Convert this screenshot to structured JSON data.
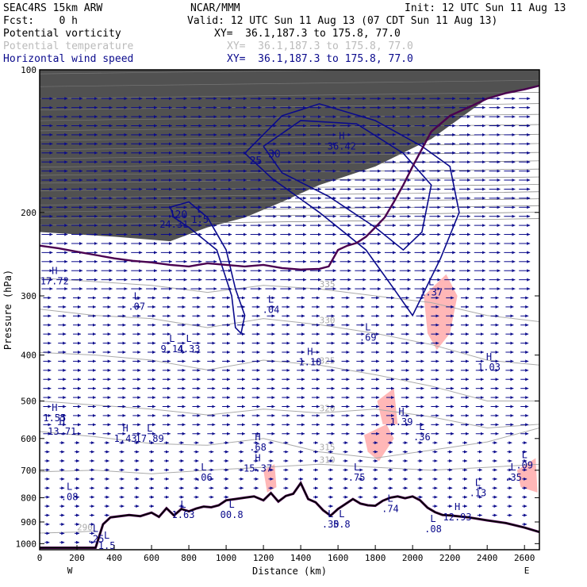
{
  "header": {
    "model": "SEAC4RS 15km ARW",
    "org": "NCAR/MMM",
    "init": "Init: 12 UTC Sun 11 Aug 13",
    "fcst": "Fcst:    0 h",
    "valid": "Valid: 12 UTC Sun 11 Aug 13 (07 CDT Sun 11 Aug 13)",
    "fields": [
      {
        "name": "Potential vorticity",
        "xy": "XY=  36.1,187.3 to 175.8, 77.0",
        "color": "#000000"
      },
      {
        "name": "Potential temperature",
        "xy": "XY=  36.1,187.3 to 175.8, 77.0",
        "color": "#bbbbbb"
      },
      {
        "name": "Horizontal wind speed",
        "xy": "XY=  36.1,187.3 to 175.8, 77.0",
        "color": "#0a0a8c"
      }
    ]
  },
  "colors": {
    "pv_shade": "#333333",
    "theta": "#aaaaaa",
    "wind": "#0a0a8c",
    "pink": "#ffb7b7",
    "terrain": "#000000",
    "pv_contour": "#4a0050"
  },
  "chart_data": {
    "type": "cross-section",
    "xlabel": "Distance (km)",
    "ylabel": "Pressure (hPa)",
    "xlim": [
      0,
      2680
    ],
    "ylim": [
      1030,
      100
    ],
    "y_scale": "log",
    "x_ticks": [
      0,
      200,
      400,
      600,
      800,
      1000,
      1200,
      1400,
      1600,
      1800,
      2000,
      2200,
      2400,
      2600
    ],
    "x_tick_labels": [
      "0",
      "200",
      "400",
      "600",
      "800",
      "1000",
      "1200",
      "1400",
      "1600",
      "1800",
      "2000",
      "2200",
      "2400",
      "2600"
    ],
    "y_ticks": [
      100,
      200,
      300,
      400,
      500,
      600,
      700,
      800,
      900,
      1000
    ],
    "y_tick_labels": [
      "100",
      "200",
      "300",
      "400",
      "500",
      "600",
      "700",
      "800",
      "900",
      "1000"
    ],
    "x_end_labels": {
      "left": "W",
      "right": "E"
    },
    "terrain": [
      [
        0,
        1020
      ],
      [
        300,
        1020
      ],
      [
        340,
        910
      ],
      [
        380,
        880
      ],
      [
        480,
        870
      ],
      [
        540,
        875
      ],
      [
        600,
        860
      ],
      [
        640,
        878
      ],
      [
        680,
        842
      ],
      [
        720,
        872
      ],
      [
        760,
        845
      ],
      [
        800,
        855
      ],
      [
        840,
        843
      ],
      [
        880,
        835
      ],
      [
        920,
        838
      ],
      [
        960,
        830
      ],
      [
        1000,
        810
      ],
      [
        1050,
        805
      ],
      [
        1100,
        800
      ],
      [
        1150,
        795
      ],
      [
        1200,
        810
      ],
      [
        1240,
        782
      ],
      [
        1280,
        815
      ],
      [
        1320,
        793
      ],
      [
        1360,
        785
      ],
      [
        1400,
        745
      ],
      [
        1440,
        805
      ],
      [
        1480,
        818
      ],
      [
        1520,
        850
      ],
      [
        1560,
        873
      ],
      [
        1600,
        845
      ],
      [
        1640,
        825
      ],
      [
        1680,
        805
      ],
      [
        1720,
        823
      ],
      [
        1760,
        830
      ],
      [
        1800,
        832
      ],
      [
        1840,
        812
      ],
      [
        1880,
        800
      ],
      [
        1920,
        795
      ],
      [
        1960,
        802
      ],
      [
        2000,
        795
      ],
      [
        2040,
        810
      ],
      [
        2080,
        840
      ],
      [
        2120,
        858
      ],
      [
        2160,
        870
      ],
      [
        2200,
        872
      ],
      [
        2300,
        880
      ],
      [
        2400,
        893
      ],
      [
        2500,
        905
      ],
      [
        2600,
        925
      ],
      [
        2680,
        945
      ]
    ],
    "tropopause": [
      [
        0,
        235
      ],
      [
        100,
        238
      ],
      [
        200,
        242
      ],
      [
        300,
        246
      ],
      [
        400,
        250
      ],
      [
        500,
        253
      ],
      [
        600,
        255
      ],
      [
        700,
        258
      ],
      [
        800,
        260
      ],
      [
        900,
        256
      ],
      [
        1000,
        258
      ],
      [
        1100,
        260
      ],
      [
        1200,
        258
      ],
      [
        1300,
        262
      ],
      [
        1400,
        264
      ],
      [
        1500,
        263
      ],
      [
        1550,
        260
      ],
      [
        1600,
        240
      ],
      [
        1650,
        235
      ],
      [
        1700,
        232
      ],
      [
        1750,
        225
      ],
      [
        1800,
        215
      ],
      [
        1850,
        205
      ],
      [
        1900,
        190
      ],
      [
        1950,
        175
      ],
      [
        2000,
        160
      ],
      [
        2100,
        135
      ],
      [
        2200,
        125
      ],
      [
        2300,
        120
      ],
      [
        2400,
        115
      ],
      [
        2500,
        112
      ],
      [
        2600,
        110
      ],
      [
        2680,
        108
      ]
    ],
    "theta_isentropes": [
      {
        "label": "290",
        "points": [
          [
            0,
            950
          ],
          [
            200,
            945
          ],
          [
            300,
            940
          ]
        ]
      },
      {
        "label": "310",
        "points": [
          [
            0,
            705
          ],
          [
            300,
            700
          ],
          [
            600,
            712
          ],
          [
            900,
            700
          ],
          [
            1200,
            690
          ],
          [
            1500,
            680
          ],
          [
            1800,
            690
          ],
          [
            2100,
            700
          ],
          [
            2400,
            690
          ],
          [
            2680,
            680
          ]
        ]
      },
      {
        "label": "315",
        "points": [
          [
            0,
            580
          ],
          [
            300,
            595
          ],
          [
            600,
            615
          ],
          [
            900,
            620
          ],
          [
            1200,
            600
          ],
          [
            1500,
            640
          ],
          [
            1800,
            660
          ],
          [
            2100,
            635
          ],
          [
            2400,
            610
          ],
          [
            2680,
            570
          ]
        ]
      },
      {
        "label": "320",
        "points": [
          [
            0,
            500
          ],
          [
            300,
            510
          ],
          [
            600,
            520
          ],
          [
            900,
            535
          ],
          [
            1200,
            520
          ],
          [
            1500,
            530
          ],
          [
            1800,
            520
          ],
          [
            2100,
            540
          ],
          [
            2400,
            570
          ],
          [
            2680,
            560
          ]
        ]
      },
      {
        "label": "325",
        "points": [
          [
            0,
            395
          ],
          [
            300,
            400
          ],
          [
            600,
            410
          ],
          [
            900,
            430
          ],
          [
            1200,
            410
          ],
          [
            1500,
            420
          ],
          [
            1800,
            440
          ],
          [
            2100,
            465
          ],
          [
            2400,
            500
          ],
          [
            2680,
            500
          ]
        ]
      },
      {
        "label": "330",
        "points": [
          [
            0,
            320
          ],
          [
            300,
            330
          ],
          [
            600,
            335
          ],
          [
            900,
            350
          ],
          [
            1200,
            335
          ],
          [
            1500,
            345
          ],
          [
            1800,
            360
          ],
          [
            2100,
            380
          ],
          [
            2400,
            410
          ],
          [
            2680,
            420
          ]
        ]
      },
      {
        "label": "335",
        "points": [
          [
            0,
            275
          ],
          [
            300,
            280
          ],
          [
            600,
            285
          ],
          [
            900,
            295
          ],
          [
            1200,
            285
          ],
          [
            1500,
            290
          ],
          [
            1800,
            300
          ],
          [
            2100,
            310
          ],
          [
            2400,
            330
          ],
          [
            2680,
            340
          ]
        ]
      }
    ],
    "wind_contours": [
      {
        "label": "20",
        "points": [
          [
            700,
            195
          ],
          [
            800,
            190
          ],
          [
            900,
            205
          ],
          [
            1000,
            240
          ],
          [
            1050,
            290
          ],
          [
            1100,
            330
          ],
          [
            1080,
            360
          ],
          [
            1050,
            350
          ],
          [
            1030,
            300
          ],
          [
            950,
            240
          ],
          [
            800,
            215
          ],
          [
            720,
            205
          ],
          [
            700,
            195
          ]
        ]
      },
      {
        "label": "25",
        "points": [
          [
            1100,
            150
          ],
          [
            1300,
            125
          ],
          [
            1500,
            118
          ],
          [
            1800,
            128
          ],
          [
            2050,
            145
          ],
          [
            2200,
            160
          ],
          [
            2250,
            200
          ],
          [
            2150,
            250
          ],
          [
            2000,
            330
          ],
          [
            1900,
            290
          ],
          [
            1750,
            240
          ],
          [
            1500,
            200
          ],
          [
            1250,
            170
          ],
          [
            1100,
            150
          ]
        ]
      },
      {
        "label": "30",
        "points": [
          [
            1200,
            145
          ],
          [
            1400,
            128
          ],
          [
            1700,
            130
          ],
          [
            1950,
            150
          ],
          [
            2100,
            175
          ],
          [
            2050,
            220
          ],
          [
            1950,
            240
          ],
          [
            1800,
            215
          ],
          [
            1550,
            185
          ],
          [
            1300,
            165
          ],
          [
            1200,
            145
          ]
        ]
      }
    ],
    "pink_regions": [
      [
        [
          2060,
          300
        ],
        [
          2180,
          270
        ],
        [
          2240,
          300
        ],
        [
          2200,
          360
        ],
        [
          2130,
          390
        ],
        [
          2080,
          360
        ]
      ],
      [
        [
          1740,
          590
        ],
        [
          1860,
          560
        ],
        [
          1900,
          600
        ],
        [
          1820,
          670
        ],
        [
          1760,
          640
        ]
      ],
      [
        [
          1810,
          500
        ],
        [
          1900,
          470
        ],
        [
          1920,
          560
        ],
        [
          1840,
          560
        ]
      ],
      [
        [
          2560,
          700
        ],
        [
          2660,
          660
        ],
        [
          2670,
          780
        ],
        [
          2580,
          760
        ]
      ],
      [
        [
          380,
          960
        ],
        [
          480,
          970
        ],
        [
          440,
          1020
        ],
        [
          360,
          1010
        ]
      ],
      [
        [
          1200,
          700
        ],
        [
          1260,
          680
        ],
        [
          1270,
          760
        ],
        [
          1220,
          780
        ]
      ]
    ],
    "pv_shade_regions": [
      [
        [
          0,
          100
        ],
        [
          2680,
          100
        ],
        [
          2680,
          108
        ],
        [
          2400,
          115
        ],
        [
          2100,
          140
        ],
        [
          1800,
          160
        ],
        [
          1500,
          175
        ],
        [
          1300,
          190
        ],
        [
          1100,
          205
        ],
        [
          900,
          215
        ],
        [
          700,
          230
        ],
        [
          400,
          225
        ],
        [
          0,
          220
        ]
      ]
    ],
    "extrema": [
      {
        "type": "H",
        "value": "17.72",
        "x": 80,
        "p": 270
      },
      {
        "type": "L",
        "value": "24.31",
        "x": 720,
        "p": 205
      },
      {
        "type": "L",
        "value": "1.5",
        "x": 860,
        "p": 200
      },
      {
        "type": "H",
        "value": "36.42",
        "x": 1620,
        "p": 140
      },
      {
        "type": "L",
        "value": ".07",
        "x": 520,
        "p": 305
      },
      {
        "type": "L",
        "value": ".04",
        "x": 1240,
        "p": 310
      },
      {
        "type": "L",
        "value": "9.14",
        "x": 710,
        "p": 375
      },
      {
        "type": "L",
        "value": "4.33",
        "x": 800,
        "p": 375
      },
      {
        "type": "H",
        "value": "1.10",
        "x": 1450,
        "p": 400
      },
      {
        "type": "L",
        "value": ".69",
        "x": 1760,
        "p": 355
      },
      {
        "type": "H",
        "value": "1.03",
        "x": 2410,
        "p": 410
      },
      {
        "type": "L",
        "value": "1.37",
        "x": 2100,
        "p": 285
      },
      {
        "type": "H",
        "value": "1.55",
        "x": 80,
        "p": 525
      },
      {
        "type": "H",
        "value": "13.71",
        "x": 120,
        "p": 560
      },
      {
        "type": "H",
        "value": "1.43",
        "x": 460,
        "p": 580
      },
      {
        "type": "L",
        "value": "17.89",
        "x": 590,
        "p": 580
      },
      {
        "type": "H",
        "value": "1.39",
        "x": 1940,
        "p": 535
      },
      {
        "type": "L",
        "value": ".36",
        "x": 2050,
        "p": 575
      },
      {
        "type": "H",
        "value": ".68",
        "x": 1170,
        "p": 605
      },
      {
        "type": "H",
        "value": "15.37",
        "x": 1170,
        "p": 670
      },
      {
        "type": "L",
        "value": ".06",
        "x": 880,
        "p": 700
      },
      {
        "type": "L",
        "value": ".75",
        "x": 1700,
        "p": 700
      },
      {
        "type": "L",
        "value": ".13",
        "x": 2350,
        "p": 755
      },
      {
        "type": "L",
        "value": ".09",
        "x": 2600,
        "p": 660
      },
      {
        "type": "L",
        "value": ".35",
        "x": 2540,
        "p": 700
      },
      {
        "type": "L",
        "value": ".08",
        "x": 160,
        "p": 770
      },
      {
        "type": "L",
        "value": "1.63",
        "x": 770,
        "p": 840
      },
      {
        "type": "L",
        "value": "00.8",
        "x": 1030,
        "p": 840
      },
      {
        "type": "L",
        "value": ".74",
        "x": 1880,
        "p": 815
      },
      {
        "type": "L",
        "value": ".30",
        "x": 1560,
        "p": 880
      },
      {
        "type": "L",
        "value": "5.8",
        "x": 1620,
        "p": 880
      },
      {
        "type": "H",
        "value": "12.93",
        "x": 2240,
        "p": 850
      },
      {
        "type": "L",
        "value": ".08",
        "x": 2110,
        "p": 900
      },
      {
        "type": "L",
        "value": ".25",
        "x": 300,
        "p": 945
      },
      {
        "type": "L",
        "value": "1.5",
        "x": 360,
        "p": 975
      }
    ]
  }
}
